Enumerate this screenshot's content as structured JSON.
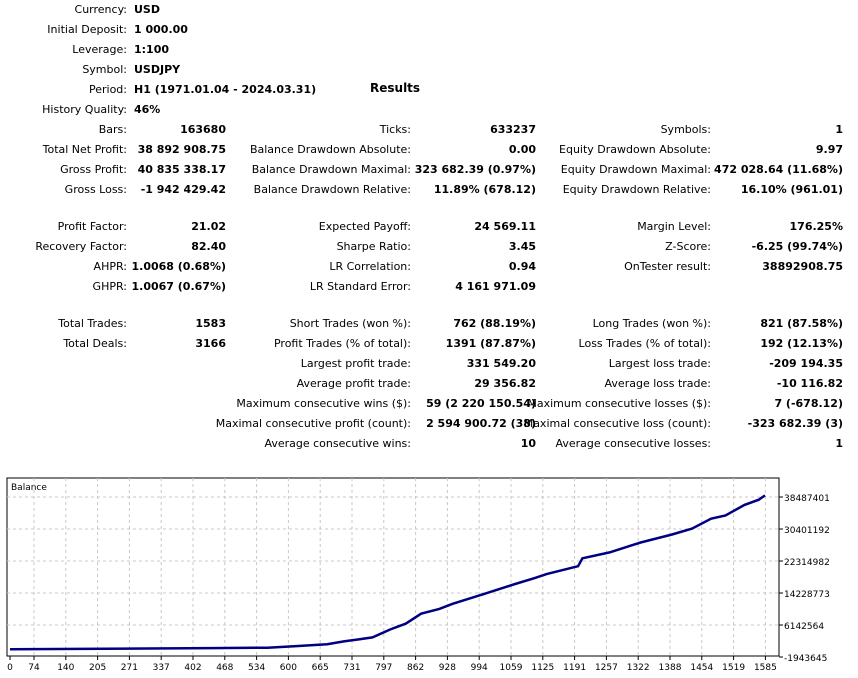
{
  "settings": [
    {
      "label": "Currency:",
      "value": "USD"
    },
    {
      "label": "Initial Deposit:",
      "value": "1 000.00"
    },
    {
      "label": "Leverage:",
      "value": "1:100"
    },
    {
      "label": "Symbol:",
      "value": "USDJPY"
    },
    {
      "label": "Period:",
      "value": "H1 (1971.01.04 - 2024.03.31)"
    },
    {
      "label": "History Quality:",
      "value": "46%"
    }
  ],
  "results_title": "Results",
  "col1": [
    {
      "label": "Bars:",
      "value": "163680",
      "row": 0
    },
    {
      "label": "Total Net Profit:",
      "value": "38 892 908.75",
      "row": 1
    },
    {
      "label": "Gross Profit:",
      "value": "40 835 338.17",
      "row": 2
    },
    {
      "label": "Gross Loss:",
      "value": "-1 942 429.42",
      "row": 3
    },
    {
      "label": "Profit Factor:",
      "value": "21.02",
      "row": 4
    },
    {
      "label": "Recovery Factor:",
      "value": "82.40",
      "row": 5
    },
    {
      "label": "AHPR:",
      "value": "1.0068 (0.68%)",
      "row": 6
    },
    {
      "label": "GHPR:",
      "value": "1.0067 (0.67%)",
      "row": 7
    },
    {
      "label": "Total Trades:",
      "value": "1583",
      "row": 8
    },
    {
      "label": "Total Deals:",
      "value": "3166",
      "row": 9
    }
  ],
  "col2": [
    {
      "label": "Ticks:",
      "value": "633237",
      "row": 0
    },
    {
      "label": "Balance Drawdown Absolute:",
      "value": "0.00",
      "row": 1
    },
    {
      "label": "Balance Drawdown Maximal:",
      "value": "323 682.39 (0.97%)",
      "row": 2
    },
    {
      "label": "Balance Drawdown Relative:",
      "value": "11.89% (678.12)",
      "row": 3
    },
    {
      "label": "Expected Payoff:",
      "value": "24 569.11",
      "row": 4
    },
    {
      "label": "Sharpe Ratio:",
      "value": "3.45",
      "row": 5
    },
    {
      "label": "LR Correlation:",
      "value": "0.94",
      "row": 6
    },
    {
      "label": "LR Standard Error:",
      "value": "4 161 971.09",
      "row": 7
    },
    {
      "label": "Short Trades (won %):",
      "value": "762 (88.19%)",
      "row": 8
    },
    {
      "label": "Profit Trades (% of total):",
      "value": "1391 (87.87%)",
      "row": 9
    },
    {
      "label": "Largest profit trade:",
      "value": "331 549.20",
      "row": 10
    },
    {
      "label": "Average profit trade:",
      "value": "29 356.82",
      "row": 11
    },
    {
      "label": "Maximum consecutive wins ($):",
      "value": "59 (2 220 150.54)",
      "row": 12
    },
    {
      "label": "Maximal consecutive profit (count):",
      "value": "2 594 900.72 (38)",
      "row": 13
    },
    {
      "label": "Average consecutive wins:",
      "value": "10",
      "row": 14
    }
  ],
  "col3": [
    {
      "label": "Symbols:",
      "value": "1",
      "row": 0
    },
    {
      "label": "Equity Drawdown Absolute:",
      "value": "9.97",
      "row": 1
    },
    {
      "label": "Equity Drawdown Maximal:",
      "value": "472 028.64 (11.68%)",
      "row": 2
    },
    {
      "label": "Equity Drawdown Relative:",
      "value": "16.10% (961.01)",
      "row": 3
    },
    {
      "label": "Margin Level:",
      "value": "176.25%",
      "row": 4
    },
    {
      "label": "Z-Score:",
      "value": "-6.25 (99.74%)",
      "row": 5
    },
    {
      "label": "OnTester result:",
      "value": "38892908.75",
      "row": 6
    },
    {
      "label": "Long Trades (won %):",
      "value": "821 (87.58%)",
      "row": 8
    },
    {
      "label": "Loss Trades (% of total):",
      "value": "192 (12.13%)",
      "row": 9
    },
    {
      "label": "Largest loss trade:",
      "value": "-209 194.35",
      "row": 10
    },
    {
      "label": "Average loss trade:",
      "value": "-10 116.82",
      "row": 11
    },
    {
      "label": "Maximum consecutive losses ($):",
      "value": "7 (-678.12)",
      "row": 12
    },
    {
      "label": "Maximal consecutive loss (count):",
      "value": "-323 682.39 (3)",
      "row": 13
    },
    {
      "label": "Average consecutive losses:",
      "value": "1",
      "row": 14
    }
  ],
  "chart_data": {
    "type": "line",
    "title": "Balance",
    "line_color": "#000080",
    "grid": true,
    "x_ticks": [
      "0",
      "74",
      "140",
      "205",
      "271",
      "337",
      "402",
      "468",
      "534",
      "600",
      "665",
      "731",
      "797",
      "862",
      "928",
      "994",
      "1059",
      "1125",
      "1191",
      "1257",
      "1322",
      "1388",
      "1454",
      "1519",
      "1585"
    ],
    "y_ticks": [
      "38487401",
      "30401192",
      "22314982",
      "14228773",
      "6142564",
      "-1943645"
    ],
    "ylim": [
      -1943645,
      38487401
    ],
    "xlim": [
      0,
      1585
    ],
    "series": [
      {
        "x": [
          0,
          420,
          540,
          600,
          665,
          700,
          731,
          760,
          797,
          830,
          862,
          900,
          928,
          994,
          1059,
          1100,
          1125,
          1191,
          1200,
          1257,
          1322,
          1388,
          1430,
          1470,
          1500,
          1540,
          1570,
          1583
        ],
        "y": [
          1000,
          300000,
          400000,
          800000,
          1300000,
          2000000,
          2500000,
          3000000,
          5000000,
          6500000,
          9000000,
          10200000,
          11500000,
          14000000,
          16500000,
          18000000,
          19000000,
          21000000,
          23000000,
          24500000,
          27000000,
          29000000,
          30500000,
          33000000,
          33800000,
          36500000,
          37800000,
          38892908
        ]
      }
    ]
  }
}
